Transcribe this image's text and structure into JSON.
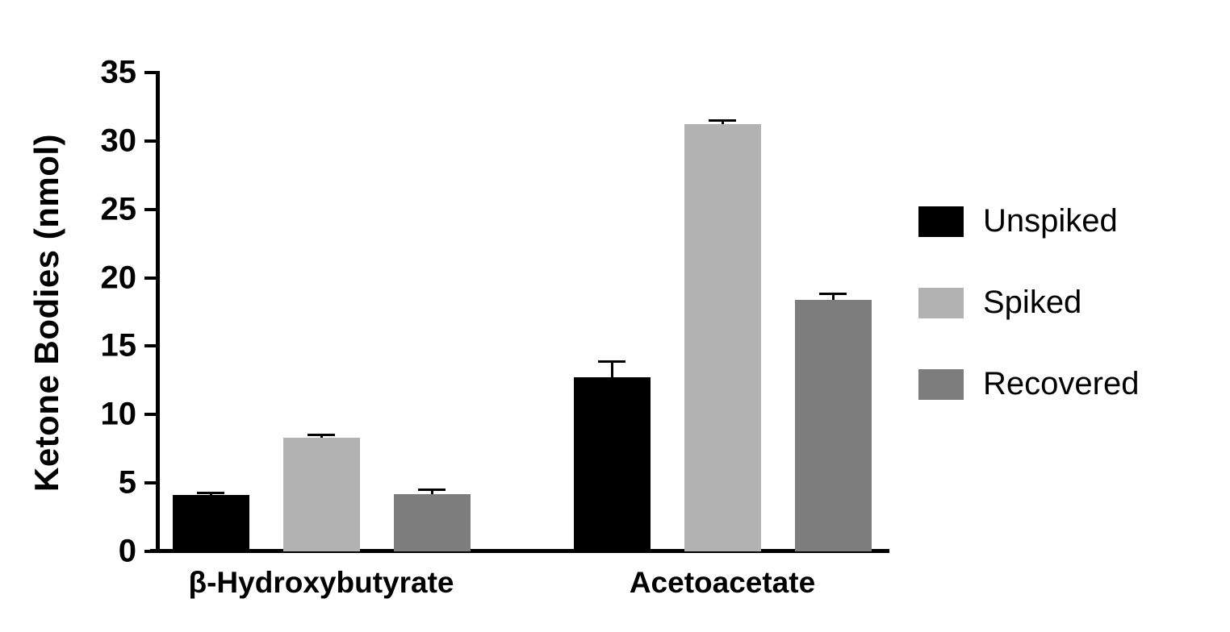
{
  "chart_data": {
    "type": "bar",
    "title": "",
    "xlabel": "",
    "ylabel": "Ketone Bodies (nmol)",
    "ylim": [
      0,
      35
    ],
    "yticks": [
      0,
      5,
      10,
      15,
      20,
      25,
      30,
      35
    ],
    "grid": false,
    "legend_position": "right",
    "categories": [
      "β-Hydroxybutyrate",
      "Acetoacetate"
    ],
    "series": [
      {
        "name": "Unspiked",
        "color": "#000000",
        "values": [
          4.1,
          12.7
        ],
        "errors": [
          0.2,
          1.2
        ]
      },
      {
        "name": "Spiked",
        "color": "#b2b2b2",
        "values": [
          8.3,
          31.2
        ],
        "errors": [
          0.2,
          0.3
        ]
      },
      {
        "name": "Recovered",
        "color": "#7d7d7d",
        "values": [
          4.2,
          18.4
        ],
        "errors": [
          0.3,
          0.4
        ]
      }
    ],
    "error_bar_color": "#000000"
  }
}
